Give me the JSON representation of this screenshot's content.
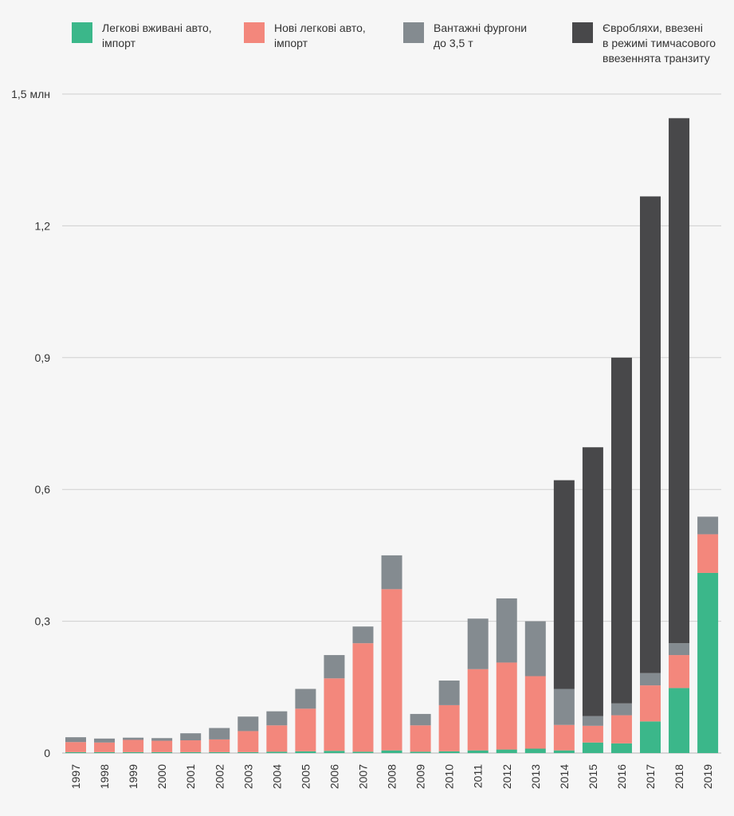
{
  "chart_data": {
    "type": "bar",
    "stacked": true,
    "categories": [
      "1997",
      "1998",
      "1999",
      "2000",
      "2001",
      "2002",
      "2003",
      "2004",
      "2005",
      "2006",
      "2007",
      "2008",
      "2009",
      "2010",
      "2011",
      "2012",
      "2013",
      "2014",
      "2015",
      "2016",
      "2017",
      "2018",
      "2019"
    ],
    "series": [
      {
        "name": "Легкові вживані авто,\nімпорт",
        "color": "#3bb78a",
        "values": [
          0.002,
          0.002,
          0.002,
          0.002,
          0.002,
          0.002,
          0.002,
          0.003,
          0.004,
          0.005,
          0.003,
          0.006,
          0.003,
          0.004,
          0.006,
          0.008,
          0.01,
          0.006,
          0.024,
          0.022,
          0.072,
          0.148,
          0.41
        ]
      },
      {
        "name": "Нові легкові авто,\nімпорт",
        "color": "#f3877c",
        "values": [
          0.023,
          0.022,
          0.028,
          0.026,
          0.027,
          0.029,
          0.048,
          0.06,
          0.097,
          0.165,
          0.247,
          0.367,
          0.06,
          0.105,
          0.185,
          0.198,
          0.165,
          0.058,
          0.038,
          0.064,
          0.082,
          0.075,
          0.088
        ]
      },
      {
        "name": "Вантажні фургони\nдо 3,5 т",
        "color": "#848b90",
        "values": [
          0.011,
          0.009,
          0.005,
          0.006,
          0.016,
          0.026,
          0.033,
          0.032,
          0.045,
          0.053,
          0.038,
          0.077,
          0.026,
          0.056,
          0.115,
          0.146,
          0.125,
          0.082,
          0.022,
          0.027,
          0.028,
          0.027,
          0.04
        ]
      },
      {
        "name": "Євробляхи, ввезені\nв режимі тимчасового\nввезеннята транзиту",
        "color": "#48484a",
        "values": [
          0,
          0,
          0,
          0,
          0,
          0,
          0,
          0,
          0,
          0,
          0,
          0,
          0,
          0,
          0,
          0,
          0,
          0.475,
          0.612,
          0.787,
          1.085,
          1.195,
          0
        ]
      }
    ],
    "yticks": [
      {
        "value": 0,
        "label": "0"
      },
      {
        "value": 0.3,
        "label": "0,3"
      },
      {
        "value": 0.6,
        "label": "0,6"
      },
      {
        "value": 0.9,
        "label": "0,9"
      },
      {
        "value": 1.2,
        "label": "1,2"
      },
      {
        "value": 1.5,
        "label": "1,5 млн"
      }
    ],
    "ylim": [
      0,
      1.5
    ],
    "title": "",
    "xlabel": "",
    "ylabel": "",
    "grid": true,
    "legend_position": "top"
  }
}
